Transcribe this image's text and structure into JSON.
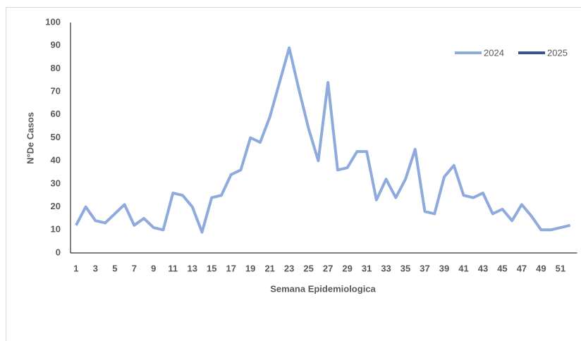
{
  "chart_data": {
    "type": "line",
    "x_label": "Semana Epidemiologica",
    "y_label": "N°De Casos",
    "categories": [
      1,
      null,
      3,
      null,
      5,
      null,
      7,
      null,
      9,
      null,
      11,
      null,
      13,
      null,
      15,
      null,
      17,
      null,
      19,
      null,
      21,
      null,
      23,
      null,
      25,
      null,
      27,
      null,
      29,
      null,
      31,
      null,
      33,
      null,
      35,
      null,
      37,
      null,
      39,
      null,
      41,
      null,
      43,
      null,
      45,
      null,
      47,
      null,
      49,
      null,
      51,
      null
    ],
    "series": [
      {
        "name": "2024",
        "color": "#8faadc",
        "values": [
          12,
          20,
          14,
          13,
          17,
          21,
          12,
          15,
          11,
          10,
          26,
          25,
          20,
          9,
          24,
          25,
          34,
          36,
          50,
          48,
          59,
          74,
          89,
          71,
          54,
          40,
          74,
          36,
          37,
          44,
          44,
          23,
          32,
          24,
          32,
          45,
          18,
          17,
          33,
          38,
          25,
          24,
          26,
          17,
          19,
          14,
          21,
          16,
          10,
          10,
          11,
          12
        ]
      },
      {
        "name": "2025",
        "color": "#2f5597",
        "values": [
          null,
          null,
          null,
          null,
          null,
          null,
          null,
          null,
          null,
          null,
          null,
          null,
          null,
          null,
          null,
          null,
          null,
          null,
          null,
          null,
          null,
          null,
          null,
          null,
          null,
          null,
          null,
          null,
          null,
          null,
          null,
          null,
          null,
          null,
          null,
          null,
          null,
          null,
          null,
          null,
          null,
          null,
          null,
          null,
          null,
          null,
          null,
          null,
          null,
          null,
          null,
          null
        ]
      }
    ],
    "ylim": [
      0,
      100
    ],
    "yticks": [
      0,
      10,
      20,
      30,
      40,
      50,
      60,
      70,
      80,
      90,
      100
    ],
    "grid": false,
    "legend": "top-right"
  }
}
